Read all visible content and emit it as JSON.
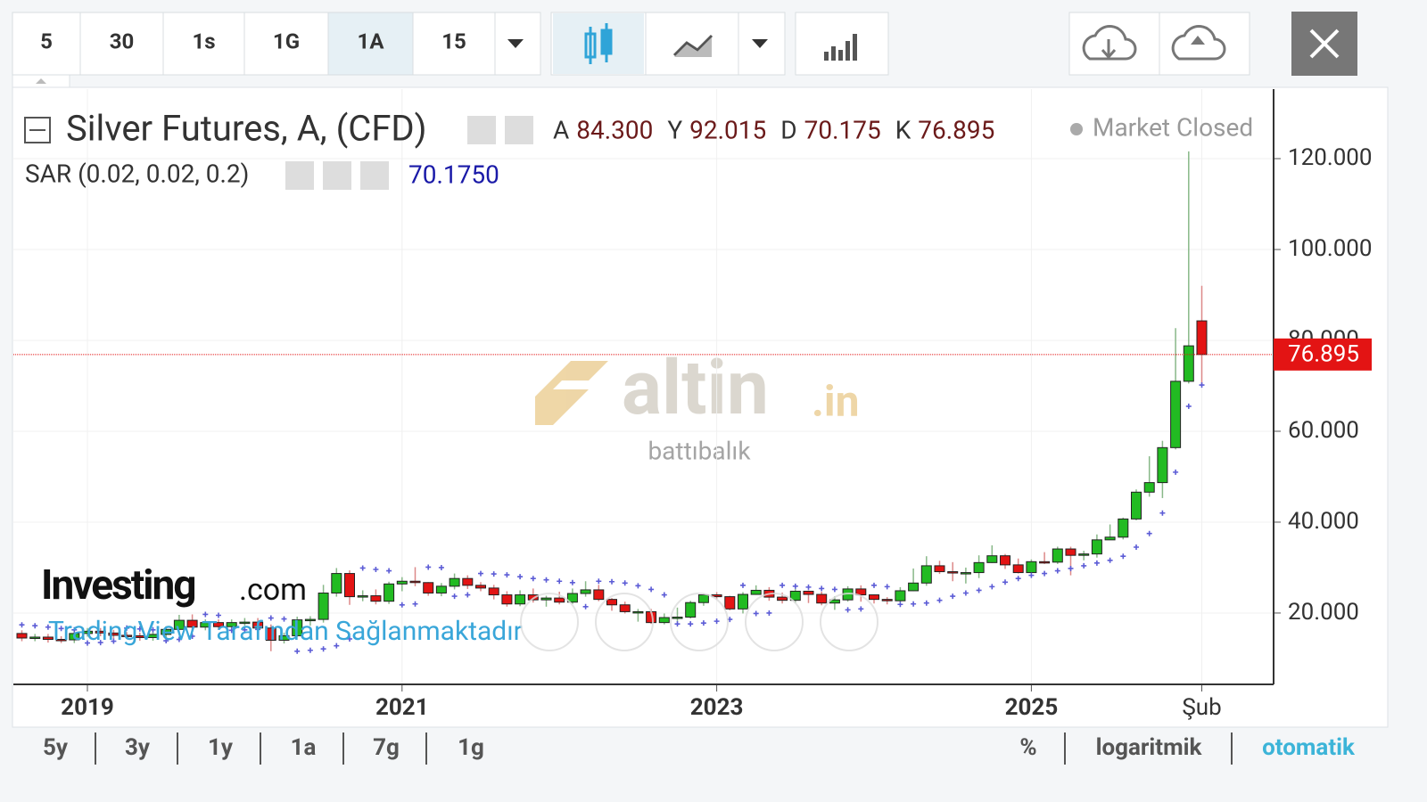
{
  "toolbar": {
    "intervals": [
      "5",
      "30",
      "1s",
      "1G",
      "1A",
      "15"
    ],
    "active_index": 4
  },
  "chart_data": {
    "type": "candlestick",
    "title": "Silver Futures, A, (CFD)",
    "header_values": [
      {
        "label": "A",
        "value": "84.300"
      },
      {
        "label": "Y",
        "value": "92.015"
      },
      {
        "label": "D",
        "value": "70.175"
      },
      {
        "label": "K",
        "value": "76.895"
      }
    ],
    "status": "Market Closed",
    "categories": [
      null,
      null,
      null,
      null,
      null,
      "2019",
      null,
      null,
      null,
      null,
      null,
      null,
      null,
      null,
      null,
      null,
      null,
      null,
      null,
      null,
      null,
      null,
      null,
      null,
      null,
      null,
      null,
      null,
      null,
      "2021",
      null,
      null,
      null,
      null,
      null,
      null,
      null,
      null,
      null,
      null,
      null,
      null,
      null,
      null,
      null,
      null,
      null,
      null,
      null,
      null,
      null,
      null,
      null,
      "2023",
      null,
      null,
      null,
      null,
      null,
      null,
      null,
      null,
      null,
      null,
      null,
      null,
      null,
      null,
      null,
      null,
      null,
      null,
      null,
      null,
      null,
      null,
      null,
      "2025",
      null,
      null,
      null,
      null,
      null,
      null,
      null,
      null,
      null,
      null,
      null,
      null,
      "Şub"
    ],
    "open": [
      15.5,
      14.5,
      14.7,
      14.2,
      14.1,
      15.5,
      16.0,
      15.6,
      15.1,
      15.0,
      14.6,
      15.3,
      16.4,
      18.4,
      16.9,
      17.9,
      17.0,
      17.9,
      18.0,
      16.7,
      14.0,
      15.0,
      18.5,
      18.6,
      24.4,
      28.7,
      23.6,
      23.8,
      22.6,
      26.4,
      27.0,
      26.7,
      24.4,
      25.9,
      27.6,
      26.1,
      25.5,
      24.0,
      22.0,
      24.0,
      22.9,
      23.3,
      22.4,
      24.3,
      25.1,
      23.0,
      21.8,
      20.3,
      20.3,
      17.9,
      19.0,
      19.1,
      22.3,
      24.0,
      23.6,
      20.9,
      24.1,
      25.0,
      23.5,
      22.8,
      24.8,
      24.1,
      22.2,
      22.9,
      25.3,
      24.0,
      23.0,
      22.7,
      24.9,
      26.6,
      30.4,
      29.1,
      28.9,
      28.9,
      31.1,
      32.6,
      30.6,
      28.9,
      31.3,
      31.2,
      34.1,
      32.7,
      33.0,
      36.1,
      36.7,
      40.7,
      46.6,
      48.7,
      56.4,
      71.0,
      84.3
    ],
    "high": [
      16.2,
      15.4,
      15.4,
      14.9,
      16.2,
      16.7,
      16.7,
      16.3,
      15.8,
      15.7,
      16.0,
      17.1,
      19.6,
      19.7,
      18.6,
      18.6,
      18.6,
      18.9,
      18.9,
      17.5,
      15.7,
      19.2,
      19.3,
      26.2,
      29.9,
      29.4,
      25.0,
      25.2,
      26.9,
      27.9,
      30.1,
      26.8,
      26.6,
      28.7,
      28.3,
      26.8,
      26.2,
      24.8,
      25.0,
      25.4,
      23.8,
      24.7,
      25.4,
      27.0,
      26.2,
      23.3,
      22.5,
      20.9,
      20.9,
      19.9,
      21.2,
      22.7,
      24.3,
      24.6,
      23.8,
      24.6,
      26.1,
      25.7,
      24.5,
      25.3,
      25.0,
      24.7,
      23.7,
      25.9,
      26.1,
      24.1,
      23.5,
      25.7,
      29.8,
      32.5,
      31.5,
      31.2,
      30.0,
      32.7,
      34.9,
      33.0,
      32.0,
      31.8,
      33.4,
      34.6,
      34.6,
      33.7,
      37.3,
      39.5,
      41.0,
      47.2,
      54.5,
      57.9,
      82.7,
      121.6,
      92.015
    ],
    "low": [
      13.8,
      13.8,
      13.5,
      13.4,
      13.4,
      14.8,
      14.9,
      14.4,
      14.3,
      13.9,
      13.9,
      14.6,
      16.3,
      16.2,
      16.2,
      16.3,
      16.3,
      17.2,
      16.0,
      11.6,
      13.3,
      14.8,
      17.2,
      17.9,
      23.6,
      21.8,
      22.6,
      21.9,
      22.0,
      24.8,
      25.9,
      23.8,
      23.7,
      25.2,
      25.3,
      24.8,
      23.0,
      21.4,
      21.5,
      22.3,
      21.4,
      21.9,
      22.0,
      23.6,
      22.6,
      20.5,
      19.9,
      18.1,
      17.6,
      17.5,
      18.1,
      18.8,
      21.6,
      23.0,
      20.6,
      19.9,
      24.0,
      22.7,
      22.1,
      22.2,
      22.2,
      21.7,
      20.7,
      22.5,
      22.5,
      22.1,
      21.9,
      22.4,
      24.8,
      26.0,
      28.6,
      27.0,
      26.5,
      27.7,
      31.0,
      29.7,
      28.7,
      28.8,
      30.8,
      30.8,
      28.3,
      31.6,
      32.2,
      36.1,
      36.2,
      40.4,
      45.6,
      45.3,
      56.0,
      70.5,
      70.175
    ],
    "close": [
      14.5,
      14.7,
      14.2,
      14.1,
      15.5,
      16.0,
      15.6,
      15.1,
      15.0,
      14.6,
      15.3,
      16.4,
      18.4,
      16.9,
      17.9,
      17.0,
      17.9,
      18.0,
      16.7,
      14.0,
      15.0,
      18.5,
      18.6,
      24.4,
      28.7,
      23.6,
      23.8,
      22.6,
      26.4,
      27.0,
      26.7,
      24.4,
      25.9,
      27.6,
      26.1,
      25.5,
      24.0,
      22.0,
      24.0,
      22.9,
      23.3,
      22.4,
      24.3,
      25.1,
      23.0,
      21.8,
      20.3,
      20.3,
      17.9,
      19.0,
      19.1,
      22.3,
      24.0,
      23.6,
      20.9,
      24.1,
      25.0,
      23.5,
      22.8,
      24.8,
      24.1,
      22.2,
      22.9,
      25.3,
      24.0,
      23.0,
      22.7,
      24.9,
      26.6,
      30.4,
      29.1,
      28.9,
      28.9,
      31.1,
      32.6,
      30.6,
      28.9,
      31.3,
      31.2,
      34.1,
      32.7,
      33.0,
      36.1,
      36.7,
      40.7,
      46.6,
      48.7,
      56.4,
      71.0,
      78.8,
      76.895
    ],
    "up_color": "#22bb22",
    "down_color": "#e31414",
    "last_price_label": "76.895",
    "sar": {
      "name": "SAR (0.02, 0.02, 0.2)",
      "current_label": "70.1750",
      "color": "#5c5cd6",
      "values": [
        17.4,
        17.2,
        16.9,
        16.6,
        16.3,
        13.4,
        13.5,
        13.8,
        16.7,
        16.5,
        16.3,
        13.9,
        14.2,
        14.9,
        19.7,
        19.5,
        16.2,
        16.3,
        16.4,
        18.9,
        18.7,
        11.6,
        11.8,
        12.1,
        12.8,
        14.3,
        29.9,
        29.6,
        29.3,
        21.8,
        22.0,
        30.1,
        30.0,
        23.7,
        24.0,
        28.7,
        28.6,
        28.4,
        28.0,
        27.6,
        27.3,
        27.0,
        26.7,
        21.4,
        27.0,
        26.9,
        26.6,
        26.0,
        25.2,
        24.0,
        17.6,
        17.6,
        17.8,
        18.2,
        18.6,
        26.1,
        19.9,
        20.0,
        26.1,
        25.9,
        25.7,
        25.4,
        25.2,
        20.7,
        20.9,
        26.1,
        25.8,
        21.9,
        22.0,
        22.2,
        22.8,
        23.7,
        24.4,
        25.0,
        25.8,
        26.8,
        27.6,
        28.3,
        28.7,
        29.3,
        29.8,
        30.4,
        31.0,
        31.6,
        32.5,
        34.5,
        37.5,
        42.0,
        51.0,
        65.5,
        70.175
      ]
    },
    "ylim": [
      4.3,
      135.3
    ],
    "yticks": [
      {
        "value": 20,
        "label": "20.000"
      },
      {
        "value": 40,
        "label": "40.000"
      },
      {
        "value": 60,
        "label": "60.000"
      },
      {
        "value": 80,
        "label": "80.000"
      },
      {
        "value": 100,
        "label": "100.000"
      },
      {
        "value": 120,
        "label": "120.000"
      }
    ],
    "grid": true
  },
  "watermark": {
    "brand": "altin",
    "brand_suffix": ".in",
    "subtitle": "battıbalık",
    "investing": "Investing",
    "investing_suffix": ".com",
    "provider": "TradingView Tarafından Sağlanmaktadır"
  },
  "footer": {
    "ranges": [
      "5y",
      "3y",
      "1y",
      "1a",
      "7g",
      "1g"
    ],
    "options": [
      "%",
      "logaritmik",
      "otomatik"
    ]
  }
}
